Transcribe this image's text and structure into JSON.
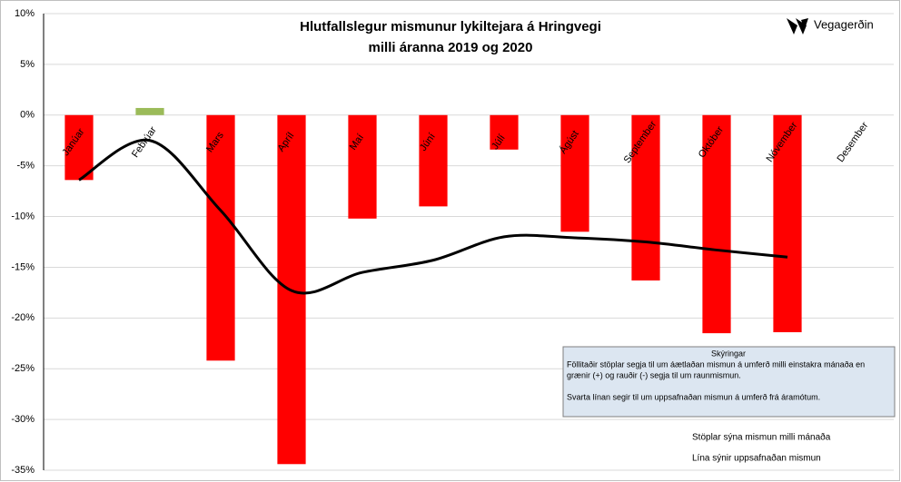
{
  "chart_data": {
    "type": "bar",
    "title": "Hlutfallslegur mismunur lykiltejara á Hringvegi",
    "subtitle": "milli áranna 2019 og 2020",
    "brand": "Vegagerðin",
    "categories": [
      "Janúar",
      "Febrúar",
      "Mars",
      "Apríl",
      "Maí",
      "Júní",
      "Júlí",
      "Ágúst",
      "September",
      "Október",
      "Nóvember",
      "Desember"
    ],
    "series": [
      {
        "type": "bar",
        "positive_color": "#9bbb59",
        "negative_color": "#ff0000",
        "values": [
          -6.4,
          0.7,
          -24.2,
          -34.4,
          -10.2,
          -9.0,
          -3.4,
          -11.5,
          -16.3,
          -21.5,
          -21.4,
          null
        ]
      },
      {
        "type": "line",
        "color": "#000000",
        "values": [
          -6.4,
          -2.5,
          -9.4,
          -17.3,
          -15.5,
          -14.3,
          -12.0,
          -12.1,
          -12.5,
          -13.3,
          -14.0,
          null
        ]
      }
    ],
    "ylim": [
      -35,
      10
    ],
    "yticks": [
      {
        "value": -35,
        "label": "-35%"
      },
      {
        "value": -30,
        "label": "-30%"
      },
      {
        "value": -25,
        "label": "-25%"
      },
      {
        "value": -20,
        "label": "-20%"
      },
      {
        "value": -15,
        "label": "-15%"
      },
      {
        "value": -10,
        "label": "-10%"
      },
      {
        "value": -5,
        "label": "-5%"
      },
      {
        "value": 0,
        "label": "0%"
      },
      {
        "value": 5,
        "label": "5%"
      },
      {
        "value": 10,
        "label": "10%"
      }
    ],
    "grid": true,
    "legend_box": {
      "title": "Skýringar",
      "lines": [
        "Föllitaðir stöplar segja til um áætlaðan mismun á umferð milli einstakra mánaða en",
        "grænir (+) og rauðir (-) segja til um raunmismun.",
        "Svarta línan segir  til um uppsafnaðan mismun á umferð frá áramótum."
      ]
    },
    "notes": [
      "Stöplar sýna mismun milli mánaða",
      "Lína sýnir uppsafnaðan mismun"
    ]
  }
}
